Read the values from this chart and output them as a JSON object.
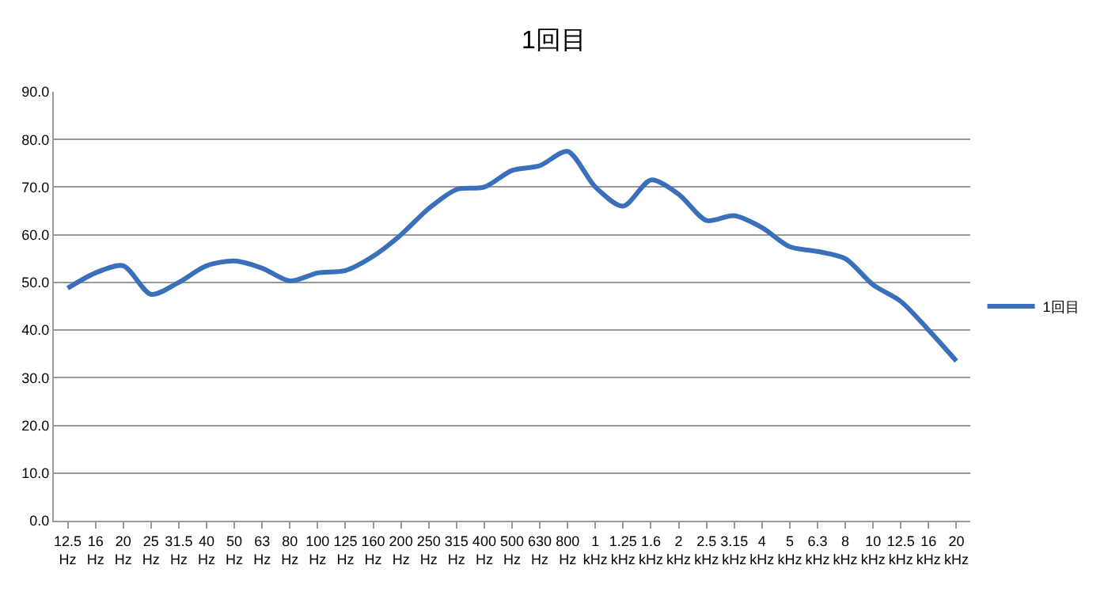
{
  "chart_data": {
    "type": "line",
    "title": "1回目",
    "categories": [
      "12.5 Hz",
      "16 Hz",
      "20 Hz",
      "25 Hz",
      "31.5 Hz",
      "40 Hz",
      "50 Hz",
      "63 Hz",
      "80 Hz",
      "100 Hz",
      "125 Hz",
      "160 Hz",
      "200 Hz",
      "250 Hz",
      "315 Hz",
      "400 Hz",
      "500 Hz",
      "630 Hz",
      "800 Hz",
      "1 kHz",
      "1.25 kHz",
      "1.6 kHz",
      "2 kHz",
      "2.5 kHz",
      "3.15 kHz",
      "4 kHz",
      "5 kHz",
      "6.3 kHz",
      "8 kHz",
      "10 kHz",
      "12.5 kHz",
      "16 kHz",
      "20 kHz"
    ],
    "series": [
      {
        "name": "1回目",
        "color": "#3a6fba",
        "values": [
          48.8,
          52,
          53.5,
          47.5,
          50,
          53.5,
          54.5,
          53,
          50.3,
          52,
          52.5,
          55.5,
          60,
          65.5,
          69.5,
          70,
          73.5,
          74.5,
          77.5,
          70,
          66,
          71.5,
          68.5,
          63,
          64,
          61.5,
          57.5,
          56.5,
          55,
          49.5,
          46,
          40,
          33.5
        ]
      }
    ],
    "ylim": [
      0,
      90
    ],
    "yticks": [
      {
        "value": 0,
        "label": "0.0"
      },
      {
        "value": 10,
        "label": "10.0"
      },
      {
        "value": 20,
        "label": "20.0"
      },
      {
        "value": 30,
        "label": "30.0"
      },
      {
        "value": 40,
        "label": "40.0"
      },
      {
        "value": 50,
        "label": "50.0"
      },
      {
        "value": 60,
        "label": "60.0"
      },
      {
        "value": 70,
        "label": "70.0"
      },
      {
        "value": 80,
        "label": "80.0"
      },
      {
        "value": 90,
        "label": "90.0"
      }
    ],
    "grid": "y",
    "legend": "right",
    "marker": "none",
    "line_style": "solid"
  }
}
